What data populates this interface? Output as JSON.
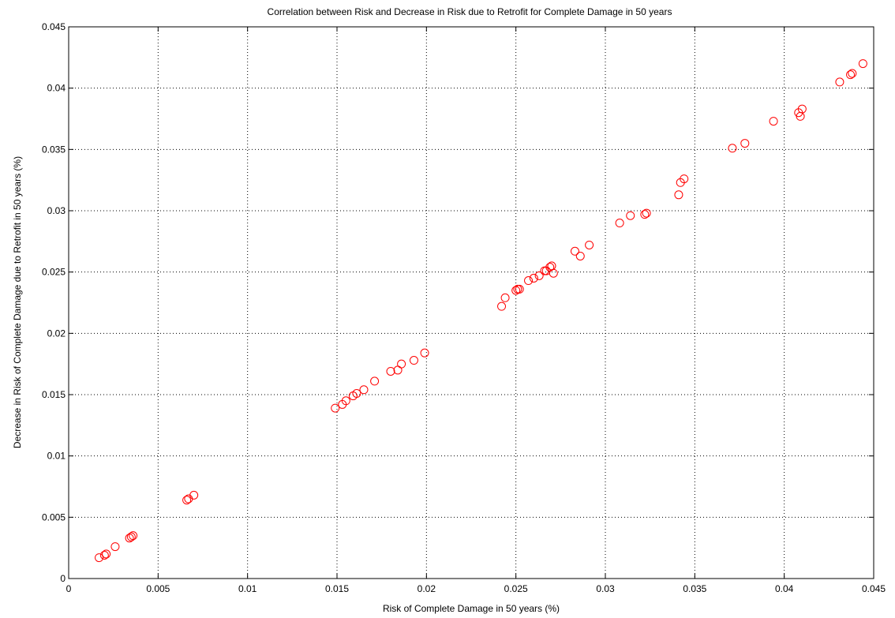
{
  "chart_data": {
    "type": "scatter",
    "title": "Correlation between Risk and Decrease in Risk due to Retrofit for Complete Damage in 50 years",
    "xlabel": "Risk of Complete Damage in 50 years (%)",
    "ylabel": "Decrease in Risk of Complete Damage due to Retrofit in 50 years (%)",
    "xlim": [
      0,
      0.045
    ],
    "ylim": [
      0,
      0.045
    ],
    "xticks": [
      0,
      0.005,
      0.01,
      0.015,
      0.02,
      0.025,
      0.03,
      0.035,
      0.04,
      0.045
    ],
    "yticks": [
      0,
      0.005,
      0.01,
      0.015,
      0.02,
      0.025,
      0.03,
      0.035,
      0.04,
      0.045
    ],
    "xtick_labels": [
      "0",
      "0.005",
      "0.01",
      "0.015",
      "0.02",
      "0.025",
      "0.03",
      "0.035",
      "0.04",
      "0.045"
    ],
    "ytick_labels": [
      "0",
      "0.005",
      "0.01",
      "0.015",
      "0.02",
      "0.025",
      "0.03",
      "0.035",
      "0.04",
      "0.045"
    ],
    "grid": true,
    "grid_style": "dotted",
    "marker": "circle-open",
    "marker_color": "#ff0000",
    "points": [
      [
        0.0017,
        0.0017
      ],
      [
        0.002,
        0.0019
      ],
      [
        0.0021,
        0.002
      ],
      [
        0.0026,
        0.0026
      ],
      [
        0.0034,
        0.0033
      ],
      [
        0.0035,
        0.0034
      ],
      [
        0.0036,
        0.0035
      ],
      [
        0.0066,
        0.0064
      ],
      [
        0.0067,
        0.0065
      ],
      [
        0.007,
        0.0068
      ],
      [
        0.0149,
        0.0139
      ],
      [
        0.0153,
        0.0142
      ],
      [
        0.0155,
        0.0145
      ],
      [
        0.0159,
        0.0149
      ],
      [
        0.0161,
        0.0151
      ],
      [
        0.0165,
        0.0154
      ],
      [
        0.0171,
        0.0161
      ],
      [
        0.018,
        0.0169
      ],
      [
        0.0184,
        0.017
      ],
      [
        0.0186,
        0.0175
      ],
      [
        0.0193,
        0.0178
      ],
      [
        0.0199,
        0.0184
      ],
      [
        0.0242,
        0.0222
      ],
      [
        0.0244,
        0.0229
      ],
      [
        0.025,
        0.0235
      ],
      [
        0.0251,
        0.0236
      ],
      [
        0.0252,
        0.0236
      ],
      [
        0.0257,
        0.0243
      ],
      [
        0.026,
        0.0245
      ],
      [
        0.0263,
        0.0247
      ],
      [
        0.0266,
        0.0251
      ],
      [
        0.0267,
        0.0251
      ],
      [
        0.0269,
        0.0254
      ],
      [
        0.027,
        0.0255
      ],
      [
        0.0271,
        0.0249
      ],
      [
        0.0283,
        0.0267
      ],
      [
        0.0286,
        0.0263
      ],
      [
        0.0291,
        0.0272
      ],
      [
        0.0308,
        0.029
      ],
      [
        0.0314,
        0.0296
      ],
      [
        0.0322,
        0.0297
      ],
      [
        0.0323,
        0.0298
      ],
      [
        0.0341,
        0.0313
      ],
      [
        0.0342,
        0.0323
      ],
      [
        0.0344,
        0.0326
      ],
      [
        0.0371,
        0.0351
      ],
      [
        0.0378,
        0.0355
      ],
      [
        0.0394,
        0.0373
      ],
      [
        0.0408,
        0.038
      ],
      [
        0.0409,
        0.0377
      ],
      [
        0.041,
        0.0383
      ],
      [
        0.0431,
        0.0405
      ],
      [
        0.0437,
        0.0411
      ],
      [
        0.0438,
        0.0412
      ],
      [
        0.0444,
        0.042
      ]
    ]
  }
}
